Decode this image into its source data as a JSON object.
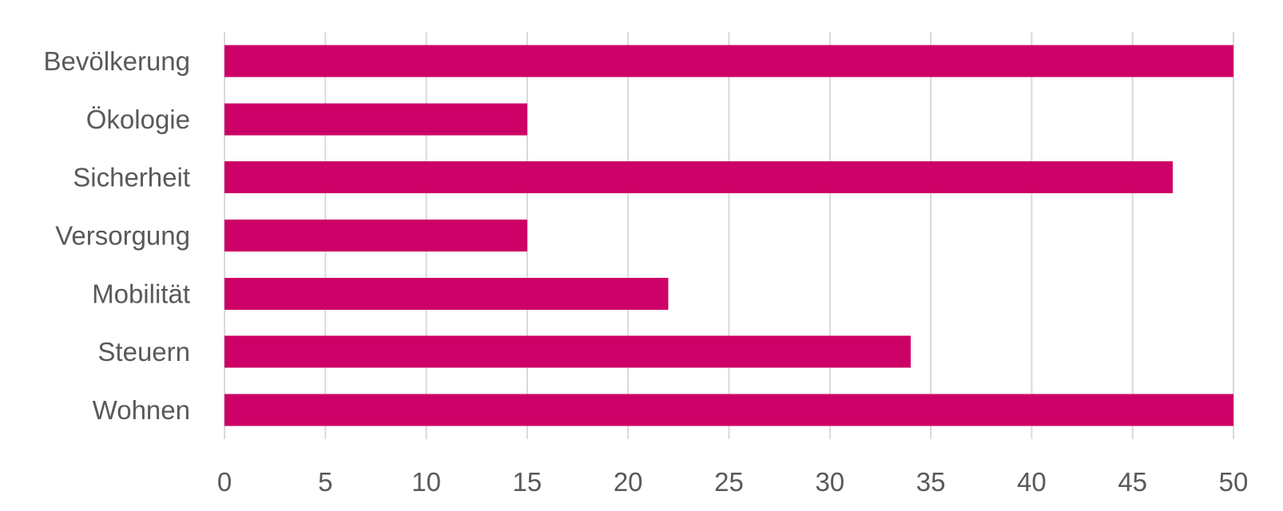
{
  "chart_data": {
    "type": "bar",
    "orientation": "horizontal",
    "title": "",
    "xlabel": "",
    "ylabel": "",
    "categories": [
      "Bevölkerung",
      "Ökologie",
      "Sicherheit",
      "Versorgung",
      "Mobilität",
      "Steuern",
      "Wohnen"
    ],
    "values": [
      50,
      15,
      47,
      15,
      22,
      34,
      50
    ],
    "xlim": [
      0,
      50
    ],
    "x_ticks": [
      "0",
      "5",
      "10",
      "15",
      "20",
      "25",
      "30",
      "35",
      "40",
      "45",
      "50"
    ],
    "grid": true,
    "legend": "none",
    "colors": {
      "bar": "#cc0066",
      "grid": "#d9d9d9",
      "text": "#595959"
    }
  }
}
